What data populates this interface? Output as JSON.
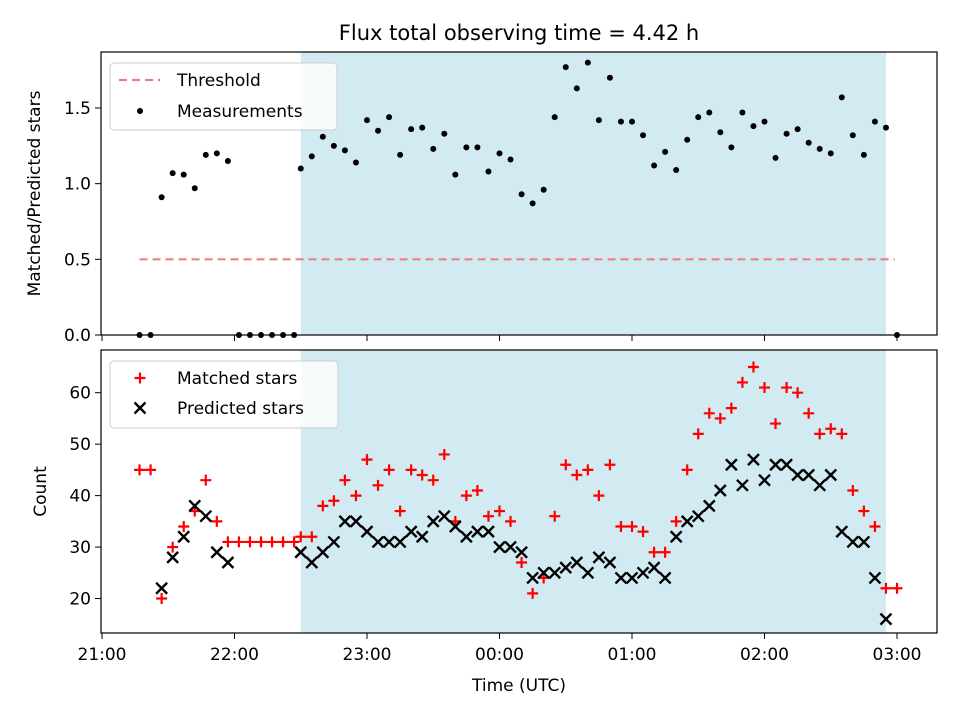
{
  "chart_data": [
    {
      "type": "scatter",
      "title": "Flux total observing time = 4.42 h",
      "xlabel": "",
      "ylabel": "Matched/Predicted stars",
      "ylim": [
        0,
        1.87
      ],
      "yticks": [
        "0.0",
        "0.5",
        "1.0",
        "1.5"
      ],
      "yticks_values": [
        0,
        0.5,
        1.0,
        1.5
      ],
      "legend_position": "top-left",
      "shaded_interval": [
        "22:30",
        "02:55"
      ],
      "colors": {
        "shade": "#add8e6",
        "threshold": "#f08080",
        "measurements": "#000000"
      },
      "threshold": {
        "name": "Threshold",
        "value": 0.5,
        "x_start": "21:17",
        "x_end": "02:59"
      },
      "measurements": {
        "name": "Measurements",
        "points": [
          [
            "21:17",
            0.0
          ],
          [
            "21:22",
            0.0
          ],
          [
            "21:27",
            0.91
          ],
          [
            "21:32",
            1.07
          ],
          [
            "21:37",
            1.06
          ],
          [
            "21:42",
            0.97
          ],
          [
            "21:47",
            1.19
          ],
          [
            "21:52",
            1.2
          ],
          [
            "21:57",
            1.15
          ],
          [
            "22:02",
            0.0
          ],
          [
            "22:07",
            0.0
          ],
          [
            "22:12",
            0.0
          ],
          [
            "22:17",
            0.0
          ],
          [
            "22:22",
            0.0
          ],
          [
            "22:27",
            0.0
          ],
          [
            "22:30",
            1.1
          ],
          [
            "22:35",
            1.18
          ],
          [
            "22:40",
            1.31
          ],
          [
            "22:45",
            1.25
          ],
          [
            "22:50",
            1.22
          ],
          [
            "22:55",
            1.14
          ],
          [
            "23:00",
            1.42
          ],
          [
            "23:05",
            1.35
          ],
          [
            "23:10",
            1.44
          ],
          [
            "23:15",
            1.19
          ],
          [
            "23:20",
            1.36
          ],
          [
            "23:25",
            1.37
          ],
          [
            "23:30",
            1.23
          ],
          [
            "23:35",
            1.33
          ],
          [
            "23:40",
            1.06
          ],
          [
            "23:45",
            1.24
          ],
          [
            "23:50",
            1.24
          ],
          [
            "23:55",
            1.08
          ],
          [
            "00:00",
            1.2
          ],
          [
            "00:05",
            1.16
          ],
          [
            "00:10",
            0.93
          ],
          [
            "00:15",
            0.87
          ],
          [
            "00:20",
            0.96
          ],
          [
            "00:25",
            1.44
          ],
          [
            "00:30",
            1.77
          ],
          [
            "00:35",
            1.63
          ],
          [
            "00:40",
            1.8
          ],
          [
            "00:45",
            1.42
          ],
          [
            "00:50",
            1.7
          ],
          [
            "00:55",
            1.41
          ],
          [
            "01:00",
            1.41
          ],
          [
            "01:05",
            1.32
          ],
          [
            "01:10",
            1.12
          ],
          [
            "01:15",
            1.21
          ],
          [
            "01:20",
            1.09
          ],
          [
            "01:25",
            1.29
          ],
          [
            "01:30",
            1.44
          ],
          [
            "01:35",
            1.47
          ],
          [
            "01:40",
            1.34
          ],
          [
            "01:45",
            1.24
          ],
          [
            "01:50",
            1.47
          ],
          [
            "01:55",
            1.38
          ],
          [
            "02:00",
            1.41
          ],
          [
            "02:05",
            1.17
          ],
          [
            "02:10",
            1.33
          ],
          [
            "02:15",
            1.36
          ],
          [
            "02:20",
            1.27
          ],
          [
            "02:25",
            1.23
          ],
          [
            "02:30",
            1.2
          ],
          [
            "02:35",
            1.57
          ],
          [
            "02:40",
            1.32
          ],
          [
            "02:45",
            1.19
          ],
          [
            "02:50",
            1.41
          ],
          [
            "02:55",
            1.37
          ],
          [
            "03:00",
            0.0
          ]
        ]
      }
    },
    {
      "type": "scatter",
      "xlabel": "Time (UTC)",
      "ylabel": "Count",
      "ylim": [
        13.3,
        68.3
      ],
      "yticks": [
        "20",
        "30",
        "40",
        "50",
        "60"
      ],
      "yticks_values": [
        20,
        30,
        40,
        50,
        60
      ],
      "xticks": [
        "21:00",
        "22:00",
        "23:00",
        "00:00",
        "01:00",
        "02:00",
        "03:00"
      ],
      "legend_position": "top-left",
      "shaded_interval": [
        "22:30",
        "02:55"
      ],
      "colors": {
        "shade": "#add8e6",
        "matched": "#ff0000",
        "predicted": "#000000"
      },
      "series": [
        {
          "name": "Matched stars",
          "marker": "+",
          "points": [
            [
              "21:17",
              45
            ],
            [
              "21:22",
              45
            ],
            [
              "21:27",
              20
            ],
            [
              "21:32",
              30
            ],
            [
              "21:37",
              34
            ],
            [
              "21:42",
              37
            ],
            [
              "21:47",
              43
            ],
            [
              "21:52",
              35
            ],
            [
              "21:57",
              31
            ],
            [
              "22:02",
              31
            ],
            [
              "22:07",
              31
            ],
            [
              "22:12",
              31
            ],
            [
              "22:17",
              31
            ],
            [
              "22:22",
              31
            ],
            [
              "22:27",
              31
            ],
            [
              "22:30",
              32
            ],
            [
              "22:35",
              32
            ],
            [
              "22:40",
              38
            ],
            [
              "22:45",
              39
            ],
            [
              "22:50",
              43
            ],
            [
              "22:55",
              40
            ],
            [
              "23:00",
              47
            ],
            [
              "23:05",
              42
            ],
            [
              "23:10",
              45
            ],
            [
              "23:15",
              37
            ],
            [
              "23:20",
              45
            ],
            [
              "23:25",
              44
            ],
            [
              "23:30",
              43
            ],
            [
              "23:35",
              48
            ],
            [
              "23:40",
              35
            ],
            [
              "23:45",
              40
            ],
            [
              "23:50",
              41
            ],
            [
              "23:55",
              36
            ],
            [
              "00:00",
              37
            ],
            [
              "00:05",
              35
            ],
            [
              "00:10",
              27
            ],
            [
              "00:15",
              21
            ],
            [
              "00:20",
              24
            ],
            [
              "00:25",
              36
            ],
            [
              "00:30",
              46
            ],
            [
              "00:35",
              44
            ],
            [
              "00:40",
              45
            ],
            [
              "00:45",
              40
            ],
            [
              "00:50",
              46
            ],
            [
              "00:55",
              34
            ],
            [
              "01:00",
              34
            ],
            [
              "01:05",
              33
            ],
            [
              "01:10",
              29
            ],
            [
              "01:15",
              29
            ],
            [
              "01:20",
              35
            ],
            [
              "01:25",
              45
            ],
            [
              "01:30",
              52
            ],
            [
              "01:35",
              56
            ],
            [
              "01:40",
              55
            ],
            [
              "01:45",
              57
            ],
            [
              "01:50",
              62
            ],
            [
              "01:55",
              65
            ],
            [
              "02:00",
              61
            ],
            [
              "02:05",
              54
            ],
            [
              "02:10",
              61
            ],
            [
              "02:15",
              60
            ],
            [
              "02:20",
              56
            ],
            [
              "02:25",
              52
            ],
            [
              "02:30",
              53
            ],
            [
              "02:35",
              52
            ],
            [
              "02:40",
              41
            ],
            [
              "02:45",
              37
            ],
            [
              "02:50",
              34
            ],
            [
              "02:55",
              22
            ],
            [
              "03:00",
              22
            ]
          ]
        },
        {
          "name": "Predicted stars",
          "marker": "x",
          "points": [
            [
              "21:27",
              22
            ],
            [
              "21:32",
              28
            ],
            [
              "21:37",
              32
            ],
            [
              "21:42",
              38
            ],
            [
              "21:47",
              36
            ],
            [
              "21:52",
              29
            ],
            [
              "21:57",
              27
            ],
            [
              "22:30",
              29
            ],
            [
              "22:35",
              27
            ],
            [
              "22:40",
              29
            ],
            [
              "22:45",
              31
            ],
            [
              "22:50",
              35
            ],
            [
              "22:55",
              35
            ],
            [
              "23:00",
              33
            ],
            [
              "23:05",
              31
            ],
            [
              "23:10",
              31
            ],
            [
              "23:15",
              31
            ],
            [
              "23:20",
              33
            ],
            [
              "23:25",
              32
            ],
            [
              "23:30",
              35
            ],
            [
              "23:35",
              36
            ],
            [
              "23:40",
              34
            ],
            [
              "23:45",
              32
            ],
            [
              "23:50",
              33
            ],
            [
              "23:55",
              33
            ],
            [
              "00:00",
              30
            ],
            [
              "00:05",
              30
            ],
            [
              "00:10",
              29
            ],
            [
              "00:15",
              24
            ],
            [
              "00:20",
              25
            ],
            [
              "00:25",
              25
            ],
            [
              "00:30",
              26
            ],
            [
              "00:35",
              27
            ],
            [
              "00:40",
              25
            ],
            [
              "00:45",
              28
            ],
            [
              "00:50",
              27
            ],
            [
              "00:55",
              24
            ],
            [
              "01:00",
              24
            ],
            [
              "01:05",
              25
            ],
            [
              "01:10",
              26
            ],
            [
              "01:15",
              24
            ],
            [
              "01:20",
              32
            ],
            [
              "01:25",
              35
            ],
            [
              "01:30",
              36
            ],
            [
              "01:35",
              38
            ],
            [
              "01:40",
              41
            ],
            [
              "01:45",
              46
            ],
            [
              "01:50",
              42
            ],
            [
              "01:55",
              47
            ],
            [
              "02:00",
              43
            ],
            [
              "02:05",
              46
            ],
            [
              "02:10",
              46
            ],
            [
              "02:15",
              44
            ],
            [
              "02:20",
              44
            ],
            [
              "02:25",
              42
            ],
            [
              "02:30",
              44
            ],
            [
              "02:35",
              33
            ],
            [
              "02:40",
              31
            ],
            [
              "02:45",
              31
            ],
            [
              "02:50",
              24
            ],
            [
              "02:55",
              16
            ]
          ]
        }
      ]
    }
  ]
}
